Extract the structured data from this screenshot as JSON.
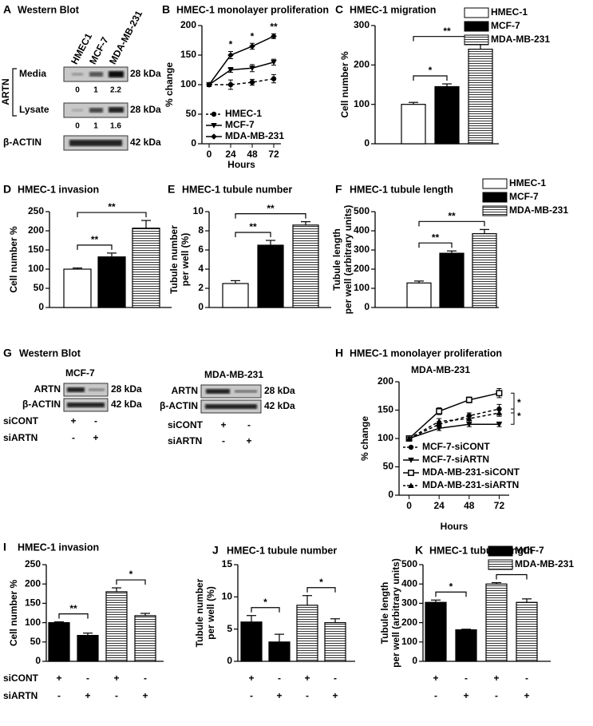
{
  "blots": [
    {
      "panel": "A",
      "title": "Western Blot",
      "lanes": [
        "HMEC1",
        "MCF-7",
        "MDA-MB-231"
      ],
      "protein": "ARTN",
      "rows": [
        {
          "label": "Media",
          "size": "28 kDa",
          "quant": [
            0,
            1,
            2.2
          ]
        },
        {
          "label": "Lysate",
          "size": "28 kDa",
          "quant": [
            0,
            1,
            1.6
          ]
        },
        {
          "label": "β-ACTIN",
          "size": "42 kDa"
        }
      ]
    },
    {
      "panel": "G",
      "title": "Western Blot",
      "groups": [
        {
          "name": "MCF-7",
          "rows": [
            {
              "label": "ARTN",
              "size": "28 kDa"
            },
            {
              "label": "β-ACTIN",
              "size": "42 kDa"
            }
          ],
          "treatments": [
            {
              "label": "siCONT",
              "signs": [
                "+",
                "-"
              ]
            },
            {
              "label": "siARTN",
              "signs": [
                "-",
                "+"
              ]
            }
          ]
        },
        {
          "name": "MDA-MB-231",
          "rows": [
            {
              "label": "ARTN",
              "size": "28 kDa"
            },
            {
              "label": "β-ACTIN",
              "size": "42 kDa"
            }
          ],
          "treatments": [
            {
              "label": "siCONT",
              "signs": [
                "+",
                "-"
              ]
            },
            {
              "label": "siARTN",
              "signs": [
                "-",
                "+"
              ]
            }
          ]
        }
      ]
    }
  ],
  "chart_data": [
    {
      "type": "line",
      "panel": "B",
      "title": "HMEC-1 monolayer proliferation",
      "ylabel": "% change",
      "xlabel": "Hours",
      "x": [
        0,
        24,
        48,
        72
      ],
      "xlim": [
        -8,
        80
      ],
      "xticks": [
        0,
        24,
        48,
        72
      ],
      "ylim": [
        0,
        200
      ],
      "yticks": [
        0,
        50,
        100,
        150,
        200
      ],
      "series": [
        {
          "name": "HMEC-1",
          "color": "#000000",
          "marker": "circle",
          "dashed": true,
          "values": [
            100,
            100,
            104,
            110
          ],
          "errors": [
            3,
            8,
            5,
            7
          ]
        },
        {
          "name": "MCF-7",
          "color": "#000000",
          "marker": "triangle-down",
          "dashed": false,
          "values": [
            100,
            125,
            128,
            138
          ],
          "errors": [
            3,
            4,
            6,
            5
          ]
        },
        {
          "name": "MDA-MB-231",
          "color": "#000000",
          "marker": "diamond",
          "dashed": false,
          "values": [
            100,
            150,
            165,
            182
          ],
          "errors": [
            3,
            6,
            5,
            4
          ]
        }
      ],
      "annotations": [
        {
          "text": "*",
          "x": 24
        },
        {
          "text": "*",
          "x": 48
        },
        {
          "text": "**",
          "x": 72
        }
      ]
    },
    {
      "type": "bar",
      "panel": "C",
      "title": "HMEC-1 migration",
      "ylabel": "Cell number %",
      "values": [
        100,
        145,
        240
      ],
      "errors": [
        5,
        7,
        12
      ],
      "colors": [
        "#ffffff",
        "#000000",
        "#ffffff"
      ],
      "hatched": [
        false,
        false,
        true
      ],
      "ylim": [
        0,
        300
      ],
      "yticks": [
        0,
        100,
        200,
        300
      ],
      "comparisons": [
        "*",
        "**"
      ],
      "legend": [
        {
          "name": "HMEC-1",
          "color": "#ffffff",
          "hatched": false
        },
        {
          "name": "MCF-7",
          "color": "#000000",
          "hatched": false
        },
        {
          "name": "MDA-MB-231",
          "color": "#ffffff",
          "hatched": true
        }
      ]
    },
    {
      "type": "bar",
      "panel": "D",
      "title": "HMEC-1 invasion",
      "ylabel": "Cell number %",
      "values": [
        100,
        132,
        207
      ],
      "errors": [
        3,
        10,
        20
      ],
      "colors": [
        "#ffffff",
        "#000000",
        "#ffffff"
      ],
      "hatched": [
        false,
        false,
        true
      ],
      "ylim": [
        0,
        250
      ],
      "yticks": [
        0,
        50,
        100,
        150,
        200,
        250
      ],
      "comparisons": [
        "**",
        "**"
      ]
    },
    {
      "type": "bar",
      "panel": "E",
      "title": "HMEC-1 tubule number",
      "ylabel": [
        "Tubule number",
        "per well (%)"
      ],
      "values": [
        2.5,
        6.5,
        8.6
      ],
      "errors": [
        0.3,
        0.5,
        0.35
      ],
      "colors": [
        "#ffffff",
        "#000000",
        "#ffffff"
      ],
      "hatched": [
        false,
        false,
        true
      ],
      "ylim": [
        0,
        10
      ],
      "yticks": [
        0,
        2,
        4,
        6,
        8,
        10
      ],
      "comparisons": [
        "**",
        "**"
      ]
    },
    {
      "type": "bar",
      "panel": "F",
      "title": "HMEC-1 tubule length",
      "ylabel": [
        "Tubule length",
        "per well (arbitrary units)"
      ],
      "values": [
        128,
        283,
        385
      ],
      "errors": [
        10,
        12,
        22
      ],
      "colors": [
        "#ffffff",
        "#000000",
        "#ffffff"
      ],
      "hatched": [
        false,
        false,
        true
      ],
      "ylim": [
        0,
        500
      ],
      "yticks": [
        0,
        100,
        200,
        300,
        400,
        500
      ],
      "comparisons": [
        "**",
        "**"
      ],
      "legend": [
        {
          "name": "HMEC-1",
          "color": "#ffffff",
          "hatched": false
        },
        {
          "name": "MCF-7",
          "color": "#000000",
          "hatched": false
        },
        {
          "name": "MDA-MB-231",
          "color": "#ffffff",
          "hatched": true
        }
      ]
    },
    {
      "type": "line",
      "panel": "H",
      "title": "HMEC-1 monolayer proliferation",
      "subtitle": "MDA-MB-231",
      "ylabel": "% change",
      "xlabel": "Hours",
      "x": [
        0,
        24,
        48,
        72
      ],
      "xlim": [
        -8,
        80
      ],
      "xticks": [
        0,
        24,
        48,
        72
      ],
      "ylim": [
        0,
        200
      ],
      "yticks": [
        0,
        50,
        100,
        150,
        200
      ],
      "series": [
        {
          "name": "MCF-7-siCONT",
          "color": "#000000",
          "marker": "circle",
          "dashed": true,
          "values": [
            100,
            125,
            140,
            152
          ],
          "errors": [
            2,
            5,
            5,
            8
          ]
        },
        {
          "name": "MCF-7-siARTN",
          "color": "#000000",
          "marker": "triangle-down",
          "dashed": false,
          "values": [
            100,
            118,
            125,
            125
          ],
          "errors": [
            2,
            4,
            4,
            4
          ]
        },
        {
          "name": "MDA-MB-231-siCONT",
          "color": "#000000",
          "marker": "square",
          "dashed": false,
          "values": [
            100,
            148,
            168,
            180
          ],
          "errors": [
            2,
            6,
            5,
            8
          ]
        },
        {
          "name": "MDA-MB-231-siARTN",
          "color": "#000000",
          "marker": "triangle-up",
          "dashed": true,
          "values": [
            100,
            130,
            135,
            145
          ],
          "errors": [
            2,
            5,
            6,
            6
          ]
        }
      ],
      "annotations": [
        {
          "text": "*"
        },
        {
          "text": "*"
        }
      ]
    },
    {
      "type": "bar",
      "panel": "I",
      "title": "HMEC-1 invasion",
      "ylabel": "Cell number %",
      "values": [
        100,
        67,
        180,
        118
      ],
      "errors": [
        2,
        6,
        10,
        6
      ],
      "colors": [
        "#000000",
        "#000000",
        "#ffffff",
        "#ffffff"
      ],
      "hatched": [
        false,
        false,
        true,
        true
      ],
      "ylim": [
        0,
        250
      ],
      "yticks": [
        0,
        50,
        100,
        150,
        200,
        250
      ],
      "comparisons": [
        "**",
        "*"
      ],
      "sign_labels": [
        "siCONT",
        "siARTN"
      ],
      "signs": [
        [
          "+",
          "-",
          "+",
          "-"
        ],
        [
          "-",
          "+",
          "-",
          "+"
        ]
      ]
    },
    {
      "type": "bar",
      "panel": "J",
      "title": "HMEC-1 tubule number",
      "ylabel": [
        "Tubule number",
        "per well (%)"
      ],
      "values": [
        6.1,
        3.0,
        8.7,
        6.0
      ],
      "errors": [
        1.0,
        1.2,
        1.5,
        0.6
      ],
      "colors": [
        "#000000",
        "#000000",
        "#ffffff",
        "#ffffff"
      ],
      "hatched": [
        false,
        false,
        true,
        true
      ],
      "ylim": [
        0,
        15
      ],
      "yticks": [
        0,
        5,
        10,
        15
      ],
      "comparisons": [
        "*",
        "*"
      ],
      "signs": [
        [
          "+",
          "-",
          "+",
          "-"
        ],
        [
          "-",
          "+",
          "-",
          "+"
        ]
      ]
    },
    {
      "type": "bar",
      "panel": "K",
      "title": "HMEC-1 tubule length",
      "ylabel": [
        "Tubule length",
        "per well (arbitrary units)"
      ],
      "values": [
        305,
        163,
        400,
        305
      ],
      "errors": [
        12,
        3,
        7,
        18
      ],
      "colors": [
        "#000000",
        "#000000",
        "#ffffff",
        "#ffffff"
      ],
      "hatched": [
        false,
        false,
        true,
        true
      ],
      "ylim": [
        0,
        500
      ],
      "yticks": [
        0,
        100,
        200,
        300,
        400,
        500
      ],
      "comparisons": [
        "*",
        "*"
      ],
      "signs": [
        [
          "+",
          "-",
          "+",
          "-"
        ],
        [
          "-",
          "+",
          "-",
          "+"
        ]
      ],
      "legend": [
        {
          "name": "MCF-7",
          "color": "#000000",
          "hatched": false
        },
        {
          "name": "MDA-MB-231",
          "color": "#ffffff",
          "hatched": true
        }
      ]
    }
  ]
}
